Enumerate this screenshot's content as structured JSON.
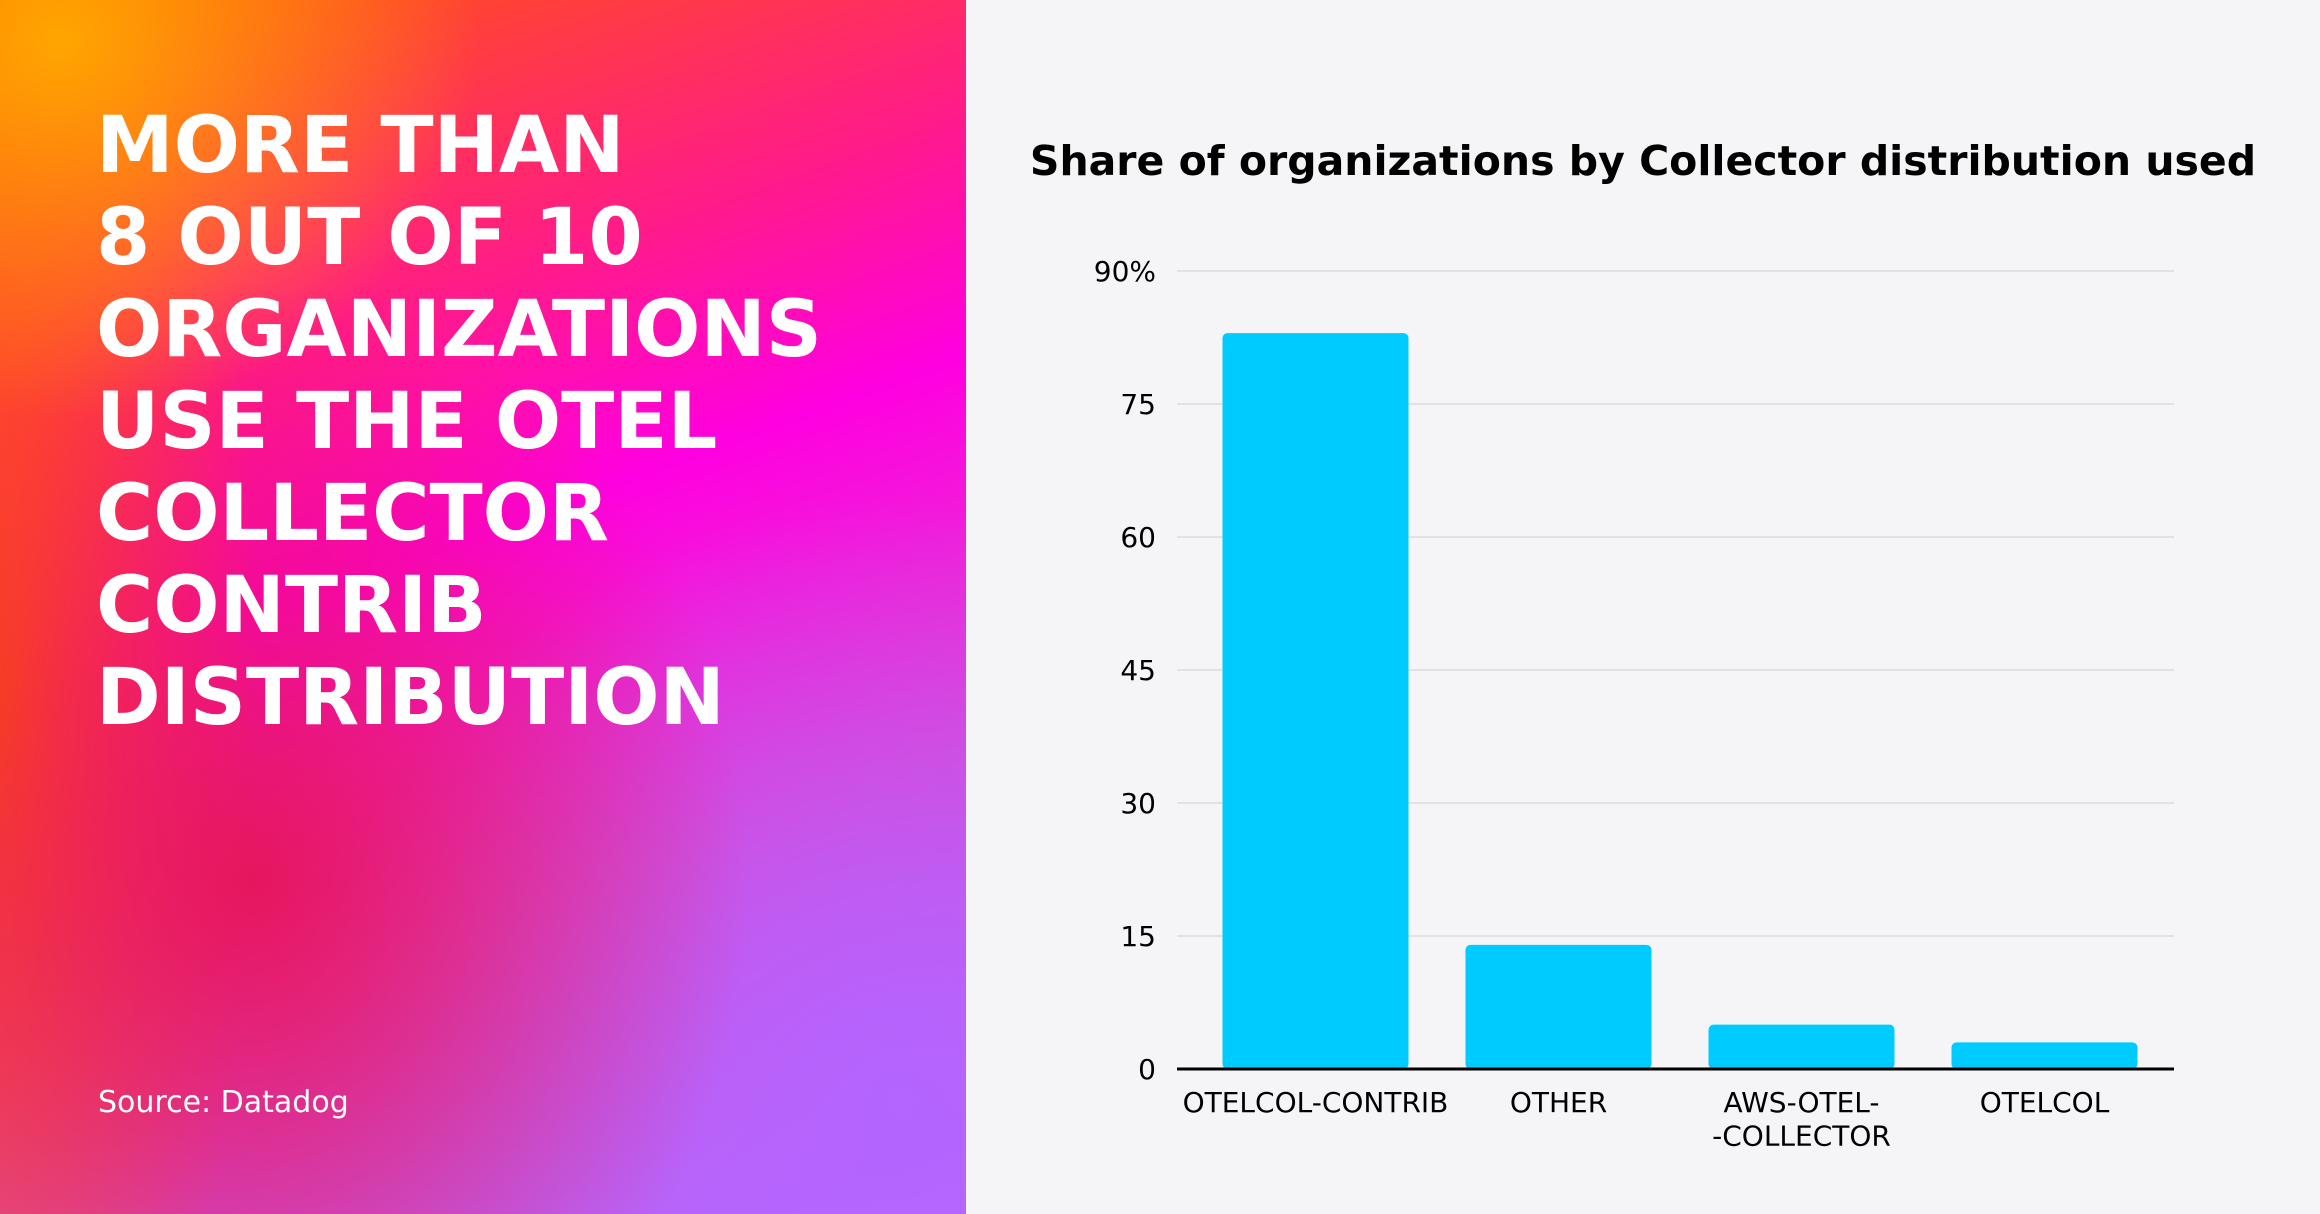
{
  "headline": {
    "lines": [
      "MORE THAN",
      "8 OUT OF 10",
      "ORGANIZATIONS",
      "USE THE OTEL",
      "COLLECTOR",
      "CONTRIB",
      "DISTRIBUTION"
    ]
  },
  "source": "Source: Datadog",
  "chart_data": {
    "type": "bar",
    "title": "Share of organizations by Collector distribution used",
    "categories": [
      "OTELCOL-CONTRIB",
      "OTHER",
      "AWS-OTEL-\n-COLLECTOR",
      "OTELCOL"
    ],
    "values": [
      83,
      14,
      5,
      3
    ],
    "color": "#00cbff",
    "ylim": [
      0,
      90
    ],
    "yticks": [
      0,
      15,
      30,
      45,
      60,
      75,
      {
        "value": 90,
        "label": "90%"
      }
    ],
    "grid": true
  }
}
